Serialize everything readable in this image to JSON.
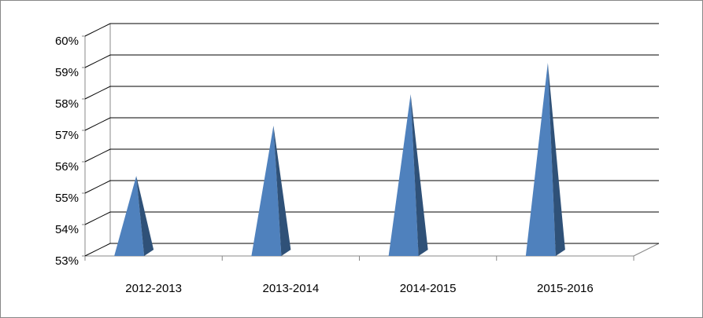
{
  "chart_data": {
    "type": "pyramid",
    "categories": [
      "2012-2013",
      "2013-2014",
      "2014-2015",
      "2015-2016"
    ],
    "values": [
      55.4,
      57,
      58,
      59
    ],
    "color": "#4f81bd",
    "ylim": [
      53,
      60
    ],
    "yticks": [
      {
        "value": 53,
        "label": "53%"
      },
      {
        "value": 54,
        "label": "54%"
      },
      {
        "value": 55,
        "label": "55%"
      },
      {
        "value": 56,
        "label": "56%"
      },
      {
        "value": 57,
        "label": "57%"
      },
      {
        "value": 58,
        "label": "58%"
      },
      {
        "value": 59,
        "label": "59%"
      },
      {
        "value": 60,
        "label": "60%"
      }
    ],
    "grid": true
  }
}
